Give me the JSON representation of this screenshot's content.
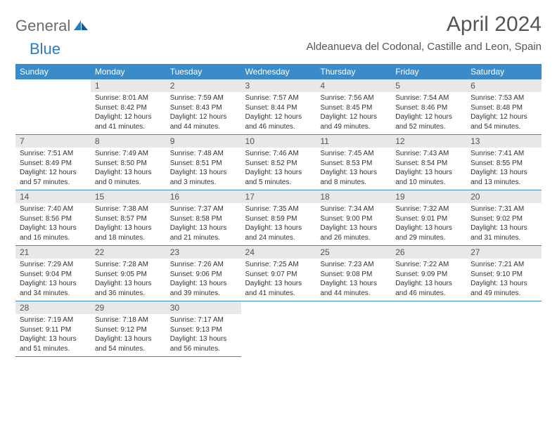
{
  "logo": {
    "text1": "General",
    "text2": "Blue"
  },
  "title": "April 2024",
  "location": "Aldeanueva del Codonal, Castille and Leon, Spain",
  "colors": {
    "header_bg": "#3b8bc9",
    "header_text": "#ffffff",
    "daynum_bg": "#e8e8e8",
    "border": "#3b8bc9",
    "logo_gray": "#6b6b6b",
    "logo_blue": "#2e7cc0",
    "body_text": "#333333",
    "title_text": "#555555"
  },
  "weekdays": [
    "Sunday",
    "Monday",
    "Tuesday",
    "Wednesday",
    "Thursday",
    "Friday",
    "Saturday"
  ],
  "weeks": [
    [
      {
        "empty": true
      },
      {
        "day": "1",
        "sunrise": "Sunrise: 8:01 AM",
        "sunset": "Sunset: 8:42 PM",
        "daylight": "Daylight: 12 hours and 41 minutes."
      },
      {
        "day": "2",
        "sunrise": "Sunrise: 7:59 AM",
        "sunset": "Sunset: 8:43 PM",
        "daylight": "Daylight: 12 hours and 44 minutes."
      },
      {
        "day": "3",
        "sunrise": "Sunrise: 7:57 AM",
        "sunset": "Sunset: 8:44 PM",
        "daylight": "Daylight: 12 hours and 46 minutes."
      },
      {
        "day": "4",
        "sunrise": "Sunrise: 7:56 AM",
        "sunset": "Sunset: 8:45 PM",
        "daylight": "Daylight: 12 hours and 49 minutes."
      },
      {
        "day": "5",
        "sunrise": "Sunrise: 7:54 AM",
        "sunset": "Sunset: 8:46 PM",
        "daylight": "Daylight: 12 hours and 52 minutes."
      },
      {
        "day": "6",
        "sunrise": "Sunrise: 7:53 AM",
        "sunset": "Sunset: 8:48 PM",
        "daylight": "Daylight: 12 hours and 54 minutes."
      }
    ],
    [
      {
        "day": "7",
        "sunrise": "Sunrise: 7:51 AM",
        "sunset": "Sunset: 8:49 PM",
        "daylight": "Daylight: 12 hours and 57 minutes."
      },
      {
        "day": "8",
        "sunrise": "Sunrise: 7:49 AM",
        "sunset": "Sunset: 8:50 PM",
        "daylight": "Daylight: 13 hours and 0 minutes."
      },
      {
        "day": "9",
        "sunrise": "Sunrise: 7:48 AM",
        "sunset": "Sunset: 8:51 PM",
        "daylight": "Daylight: 13 hours and 3 minutes."
      },
      {
        "day": "10",
        "sunrise": "Sunrise: 7:46 AM",
        "sunset": "Sunset: 8:52 PM",
        "daylight": "Daylight: 13 hours and 5 minutes."
      },
      {
        "day": "11",
        "sunrise": "Sunrise: 7:45 AM",
        "sunset": "Sunset: 8:53 PM",
        "daylight": "Daylight: 13 hours and 8 minutes."
      },
      {
        "day": "12",
        "sunrise": "Sunrise: 7:43 AM",
        "sunset": "Sunset: 8:54 PM",
        "daylight": "Daylight: 13 hours and 10 minutes."
      },
      {
        "day": "13",
        "sunrise": "Sunrise: 7:41 AM",
        "sunset": "Sunset: 8:55 PM",
        "daylight": "Daylight: 13 hours and 13 minutes."
      }
    ],
    [
      {
        "day": "14",
        "sunrise": "Sunrise: 7:40 AM",
        "sunset": "Sunset: 8:56 PM",
        "daylight": "Daylight: 13 hours and 16 minutes."
      },
      {
        "day": "15",
        "sunrise": "Sunrise: 7:38 AM",
        "sunset": "Sunset: 8:57 PM",
        "daylight": "Daylight: 13 hours and 18 minutes."
      },
      {
        "day": "16",
        "sunrise": "Sunrise: 7:37 AM",
        "sunset": "Sunset: 8:58 PM",
        "daylight": "Daylight: 13 hours and 21 minutes."
      },
      {
        "day": "17",
        "sunrise": "Sunrise: 7:35 AM",
        "sunset": "Sunset: 8:59 PM",
        "daylight": "Daylight: 13 hours and 24 minutes."
      },
      {
        "day": "18",
        "sunrise": "Sunrise: 7:34 AM",
        "sunset": "Sunset: 9:00 PM",
        "daylight": "Daylight: 13 hours and 26 minutes."
      },
      {
        "day": "19",
        "sunrise": "Sunrise: 7:32 AM",
        "sunset": "Sunset: 9:01 PM",
        "daylight": "Daylight: 13 hours and 29 minutes."
      },
      {
        "day": "20",
        "sunrise": "Sunrise: 7:31 AM",
        "sunset": "Sunset: 9:02 PM",
        "daylight": "Daylight: 13 hours and 31 minutes."
      }
    ],
    [
      {
        "day": "21",
        "sunrise": "Sunrise: 7:29 AM",
        "sunset": "Sunset: 9:04 PM",
        "daylight": "Daylight: 13 hours and 34 minutes."
      },
      {
        "day": "22",
        "sunrise": "Sunrise: 7:28 AM",
        "sunset": "Sunset: 9:05 PM",
        "daylight": "Daylight: 13 hours and 36 minutes."
      },
      {
        "day": "23",
        "sunrise": "Sunrise: 7:26 AM",
        "sunset": "Sunset: 9:06 PM",
        "daylight": "Daylight: 13 hours and 39 minutes."
      },
      {
        "day": "24",
        "sunrise": "Sunrise: 7:25 AM",
        "sunset": "Sunset: 9:07 PM",
        "daylight": "Daylight: 13 hours and 41 minutes."
      },
      {
        "day": "25",
        "sunrise": "Sunrise: 7:23 AM",
        "sunset": "Sunset: 9:08 PM",
        "daylight": "Daylight: 13 hours and 44 minutes."
      },
      {
        "day": "26",
        "sunrise": "Sunrise: 7:22 AM",
        "sunset": "Sunset: 9:09 PM",
        "daylight": "Daylight: 13 hours and 46 minutes."
      },
      {
        "day": "27",
        "sunrise": "Sunrise: 7:21 AM",
        "sunset": "Sunset: 9:10 PM",
        "daylight": "Daylight: 13 hours and 49 minutes."
      }
    ],
    [
      {
        "day": "28",
        "sunrise": "Sunrise: 7:19 AM",
        "sunset": "Sunset: 9:11 PM",
        "daylight": "Daylight: 13 hours and 51 minutes."
      },
      {
        "day": "29",
        "sunrise": "Sunrise: 7:18 AM",
        "sunset": "Sunset: 9:12 PM",
        "daylight": "Daylight: 13 hours and 54 minutes."
      },
      {
        "day": "30",
        "sunrise": "Sunrise: 7:17 AM",
        "sunset": "Sunset: 9:13 PM",
        "daylight": "Daylight: 13 hours and 56 minutes."
      },
      {
        "empty": true
      },
      {
        "empty": true
      },
      {
        "empty": true
      },
      {
        "empty": true
      }
    ]
  ]
}
